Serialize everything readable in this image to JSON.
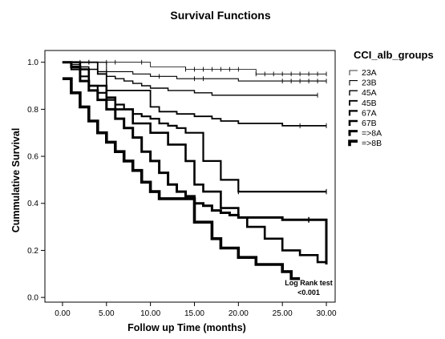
{
  "chart_data": {
    "type": "line",
    "title": "Survival Functions",
    "xlabel": "Follow up Time (months)",
    "ylabel": "Cummulative Survival",
    "xlim": [
      -2,
      31
    ],
    "ylim": [
      -0.02,
      1.05
    ],
    "xticks": [
      0,
      5,
      10,
      15,
      20,
      25,
      30
    ],
    "xtick_labels": [
      "0.00",
      "5.00",
      "10.00",
      "15.00",
      "20.00",
      "25.00",
      "30.00"
    ],
    "yticks": [
      0.0,
      0.2,
      0.4,
      0.6,
      0.8,
      1.0
    ],
    "ytick_labels": [
      "0.0",
      "0.2",
      "0.4",
      "0.6",
      "0.8",
      "1.0"
    ],
    "grid": false,
    "legend": {
      "title": "CCI_alb_groups",
      "placement": "right",
      "entries": [
        "23A",
        "23B",
        "45A",
        "45B",
        "67A",
        "67B",
        "=>8A",
        "=>8B"
      ]
    },
    "annotation": [
      "Log Rank test",
      "<0.001"
    ],
    "series": [
      {
        "name": "23A",
        "stroke": 0.8,
        "steps": [
          [
            0,
            1.0
          ],
          [
            10,
            0.98
          ],
          [
            14,
            0.97
          ],
          [
            22,
            0.95
          ],
          [
            30,
            0.95
          ]
        ],
        "censors": [
          [
            3,
            1.0
          ],
          [
            5,
            1.0
          ],
          [
            6,
            1.0
          ],
          [
            9,
            1.0
          ],
          [
            14,
            0.97
          ],
          [
            15,
            0.97
          ],
          [
            16,
            0.97
          ],
          [
            17,
            0.97
          ],
          [
            18,
            0.97
          ],
          [
            19,
            0.97
          ],
          [
            20,
            0.97
          ],
          [
            22,
            0.95
          ],
          [
            23,
            0.95
          ],
          [
            24,
            0.95
          ],
          [
            25,
            0.95
          ],
          [
            26,
            0.95
          ],
          [
            27,
            0.95
          ],
          [
            28,
            0.95
          ],
          [
            29,
            0.95
          ],
          [
            30,
            0.95
          ]
        ]
      },
      {
        "name": "23B",
        "stroke": 1.1,
        "steps": [
          [
            0,
            1.0
          ],
          [
            5,
            0.96
          ],
          [
            8,
            0.95
          ],
          [
            10,
            0.94
          ],
          [
            13,
            0.93
          ],
          [
            20,
            0.92
          ],
          [
            30,
            0.92
          ]
        ],
        "censors": [
          [
            2,
            1.0
          ],
          [
            3,
            1.0
          ],
          [
            5,
            0.96
          ],
          [
            11,
            0.94
          ],
          [
            15,
            0.93
          ],
          [
            16,
            0.93
          ],
          [
            25,
            0.92
          ],
          [
            26,
            0.92
          ],
          [
            27,
            0.92
          ],
          [
            28,
            0.92
          ],
          [
            29,
            0.92
          ],
          [
            30,
            0.92
          ]
        ]
      },
      {
        "name": "45A",
        "stroke": 1.4,
        "steps": [
          [
            0,
            1.0
          ],
          [
            1,
            0.99
          ],
          [
            2,
            0.98
          ],
          [
            3,
            0.97
          ],
          [
            4,
            0.96
          ],
          [
            5,
            0.94
          ],
          [
            6,
            0.93
          ],
          [
            7,
            0.92
          ],
          [
            8,
            0.91
          ],
          [
            9,
            0.9
          ],
          [
            10,
            0.89
          ],
          [
            12,
            0.88
          ],
          [
            15,
            0.87
          ],
          [
            17,
            0.86
          ],
          [
            29,
            0.86
          ]
        ],
        "censors": [
          [
            29,
            0.86
          ]
        ]
      },
      {
        "name": "45B",
        "stroke": 1.8,
        "steps": [
          [
            0,
            1.0
          ],
          [
            4,
            0.95
          ],
          [
            5,
            0.88
          ],
          [
            10,
            0.81
          ],
          [
            11,
            0.79
          ],
          [
            13,
            0.78
          ],
          [
            15,
            0.77
          ],
          [
            17,
            0.76
          ],
          [
            18,
            0.75
          ],
          [
            20,
            0.74
          ],
          [
            22,
            0.74
          ],
          [
            25,
            0.73
          ],
          [
            30,
            0.73
          ]
        ],
        "censors": [
          [
            27,
            0.73
          ],
          [
            30,
            0.73
          ]
        ]
      },
      {
        "name": "67A",
        "stroke": 2.2,
        "steps": [
          [
            0,
            1.0
          ],
          [
            1,
            0.97
          ],
          [
            2,
            0.94
          ],
          [
            3,
            0.9
          ],
          [
            4,
            0.87
          ],
          [
            5,
            0.84
          ],
          [
            6,
            0.82
          ],
          [
            7,
            0.8
          ],
          [
            8,
            0.78
          ],
          [
            9,
            0.77
          ],
          [
            10,
            0.76
          ],
          [
            11,
            0.74
          ],
          [
            12,
            0.73
          ],
          [
            13,
            0.72
          ],
          [
            14,
            0.7
          ],
          [
            16,
            0.58
          ],
          [
            18,
            0.5
          ],
          [
            20,
            0.45
          ],
          [
            30,
            0.45
          ]
        ],
        "censors": [
          [
            20,
            0.45
          ],
          [
            30,
            0.45
          ]
        ]
      },
      {
        "name": "67B",
        "stroke": 2.6,
        "steps": [
          [
            0,
            1.0
          ],
          [
            2,
            0.97
          ],
          [
            3,
            0.9
          ],
          [
            5,
            0.85
          ],
          [
            6,
            0.8
          ],
          [
            8,
            0.74
          ],
          [
            10,
            0.7
          ],
          [
            12,
            0.65
          ],
          [
            14,
            0.58
          ],
          [
            15,
            0.48
          ],
          [
            16,
            0.45
          ],
          [
            18,
            0.38
          ],
          [
            20,
            0.34
          ],
          [
            21,
            0.3
          ],
          [
            23,
            0.25
          ],
          [
            25,
            0.2
          ],
          [
            27,
            0.18
          ],
          [
            29,
            0.15
          ],
          [
            30,
            0.15
          ]
        ],
        "censors": []
      },
      {
        "name": "=>8A",
        "stroke": 3.0,
        "steps": [
          [
            0,
            1.0
          ],
          [
            1,
            0.98
          ],
          [
            2,
            0.92
          ],
          [
            3,
            0.88
          ],
          [
            4,
            0.84
          ],
          [
            5,
            0.8
          ],
          [
            6,
            0.76
          ],
          [
            7,
            0.72
          ],
          [
            8,
            0.68
          ],
          [
            9,
            0.62
          ],
          [
            10,
            0.58
          ],
          [
            11,
            0.53
          ],
          [
            12,
            0.48
          ],
          [
            13,
            0.45
          ],
          [
            14,
            0.43
          ],
          [
            15,
            0.4
          ],
          [
            16,
            0.39
          ],
          [
            17,
            0.37
          ],
          [
            18,
            0.36
          ],
          [
            19,
            0.35
          ],
          [
            20,
            0.34
          ],
          [
            22,
            0.34
          ],
          [
            25,
            0.33
          ],
          [
            28,
            0.33
          ],
          [
            29,
            0.33
          ],
          [
            30,
            0.14
          ]
        ],
        "censors": [
          [
            28,
            0.33
          ]
        ]
      },
      {
        "name": "=>8B",
        "stroke": 3.6,
        "steps": [
          [
            0,
            0.93
          ],
          [
            1,
            0.87
          ],
          [
            2,
            0.81
          ],
          [
            3,
            0.75
          ],
          [
            4,
            0.7
          ],
          [
            5,
            0.66
          ],
          [
            6,
            0.62
          ],
          [
            7,
            0.58
          ],
          [
            8,
            0.54
          ],
          [
            9,
            0.49
          ],
          [
            10,
            0.45
          ],
          [
            11,
            0.42
          ],
          [
            15,
            0.32
          ],
          [
            17,
            0.25
          ],
          [
            18,
            0.21
          ],
          [
            20,
            0.17
          ],
          [
            22,
            0.14
          ],
          [
            25,
            0.11
          ],
          [
            26,
            0.08
          ],
          [
            27,
            0.08
          ]
        ],
        "censors": []
      }
    ]
  }
}
